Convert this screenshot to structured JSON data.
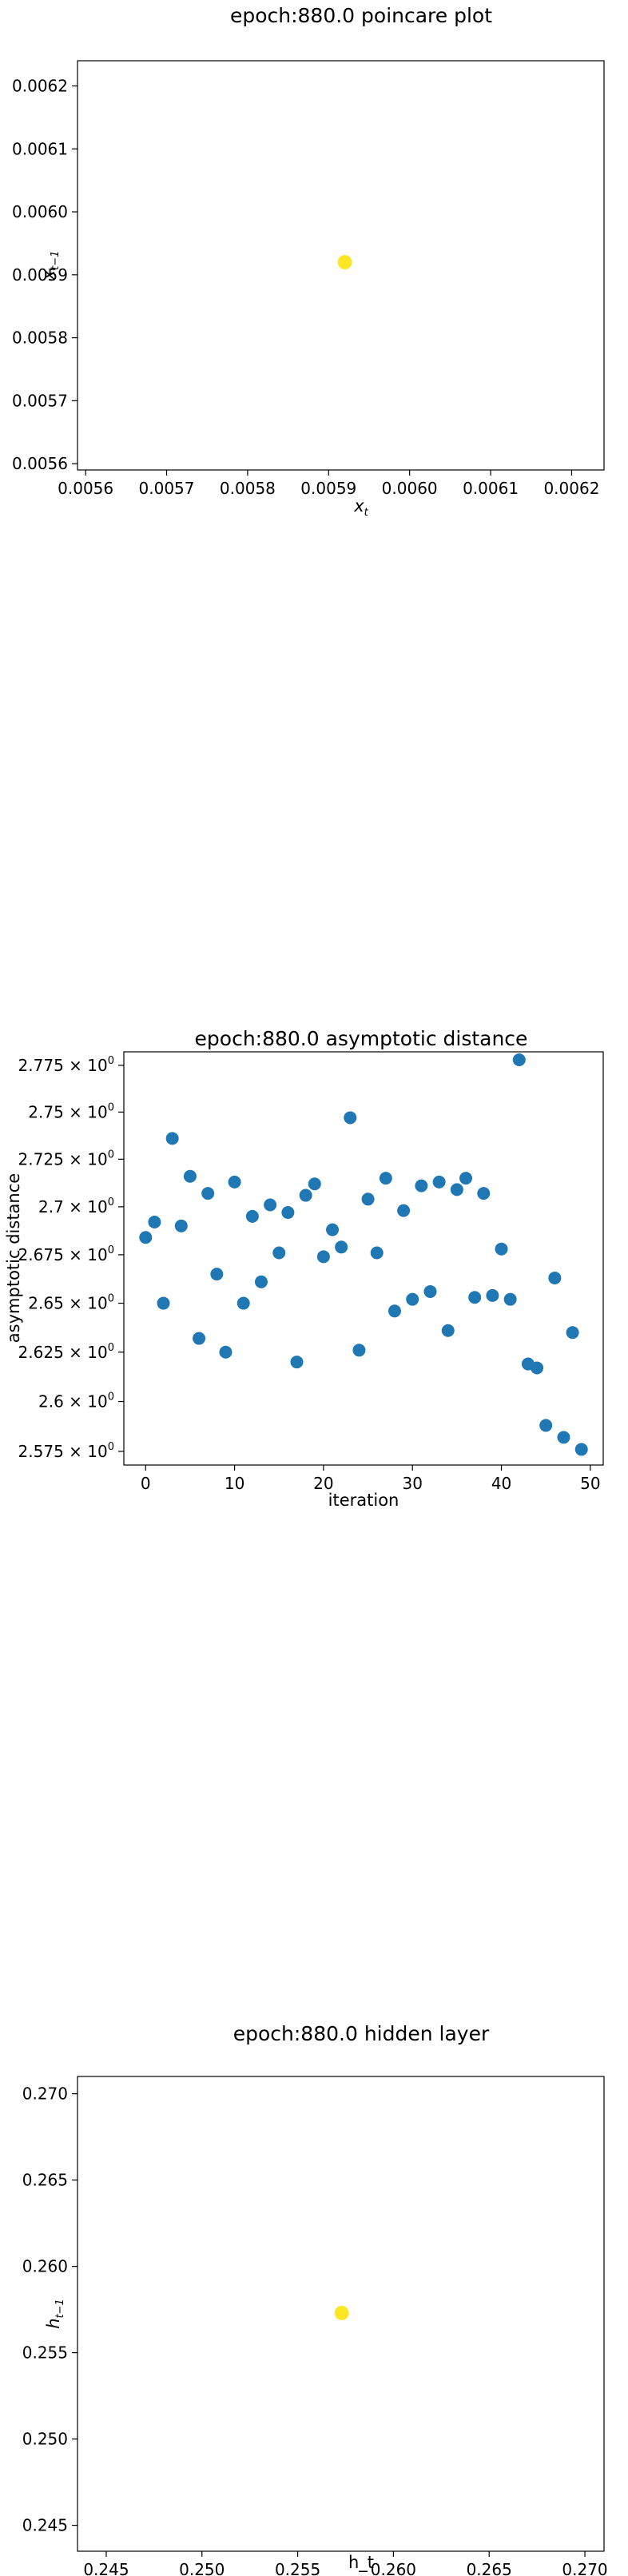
{
  "chart_data": [
    {
      "type": "scatter",
      "title": "epoch:880.0 poincare plot",
      "xlabel": "x_t",
      "ylabel": "x_{t-1}",
      "xlim": [
        0.00559,
        0.00624
      ],
      "ylim": [
        0.00559,
        0.00624
      ],
      "x_ticks": [
        "0.0056",
        "0.0057",
        "0.0058",
        "0.0059",
        "0.0060",
        "0.0061",
        "0.0062"
      ],
      "y_ticks": [
        "0.0056",
        "0.0057",
        "0.0058",
        "0.0059",
        "0.0060",
        "0.0061",
        "0.0062"
      ],
      "points": [
        {
          "x": 0.00592,
          "y": 0.00592
        }
      ],
      "point_color": "#FDE725",
      "grid": false
    },
    {
      "type": "scatter",
      "title": "epoch:880.0 asymptotic distance",
      "xlabel": "iteration",
      "ylabel": "asymptotic distance",
      "xlim": [
        -2.45,
        51.45
      ],
      "ylim": [
        2.5682,
        2.7823
      ],
      "y_scale": "log",
      "x_ticks": [
        "0",
        "10",
        "20",
        "30",
        "40",
        "50"
      ],
      "y_ticks": [
        "2.575",
        "2.6",
        "2.625",
        "2.65",
        "2.675",
        "2.7",
        "2.725",
        "2.75",
        "2.775"
      ],
      "y_tick_exponent": "0",
      "point_color": "#1F77B4",
      "grid": false,
      "x": [
        0,
        1,
        2,
        3,
        4,
        5,
        6,
        7,
        8,
        9,
        10,
        11,
        12,
        13,
        14,
        15,
        16,
        17,
        18,
        19,
        20,
        21,
        22,
        23,
        24,
        25,
        26,
        27,
        28,
        29,
        30,
        31,
        32,
        33,
        34,
        35,
        36,
        37,
        38,
        39,
        40,
        41,
        42,
        43,
        44,
        45,
        46,
        47,
        48,
        49
      ],
      "y": [
        2.684,
        2.692,
        2.65,
        2.736,
        2.69,
        2.716,
        2.632,
        2.707,
        2.665,
        2.625,
        2.713,
        2.65,
        2.695,
        2.661,
        2.701,
        2.676,
        2.697,
        2.62,
        2.706,
        2.712,
        2.674,
        2.688,
        2.679,
        2.747,
        2.626,
        2.704,
        2.676,
        2.715,
        2.646,
        2.698,
        2.652,
        2.711,
        2.656,
        2.713,
        2.636,
        2.709,
        2.715,
        2.653,
        2.707,
        2.654,
        2.678,
        2.652,
        2.778,
        2.619,
        2.617,
        2.588,
        2.663,
        2.582,
        2.635,
        2.576
      ]
    },
    {
      "type": "scatter",
      "title": "epoch:880.0 hidden layer",
      "xlabel": "h_t",
      "ylabel": "h_{t-1}",
      "xlim": [
        0.2435,
        0.271
      ],
      "ylim": [
        0.2435,
        0.271
      ],
      "x_ticks": [
        "0.245",
        "0.250",
        "0.255",
        "0.260",
        "0.265",
        "0.270"
      ],
      "y_ticks": [
        "0.245",
        "0.250",
        "0.255",
        "0.260",
        "0.265",
        "0.270"
      ],
      "points": [
        {
          "x": 0.2573,
          "y": 0.2573
        }
      ],
      "point_color": "#FDE725",
      "grid": false
    }
  ]
}
